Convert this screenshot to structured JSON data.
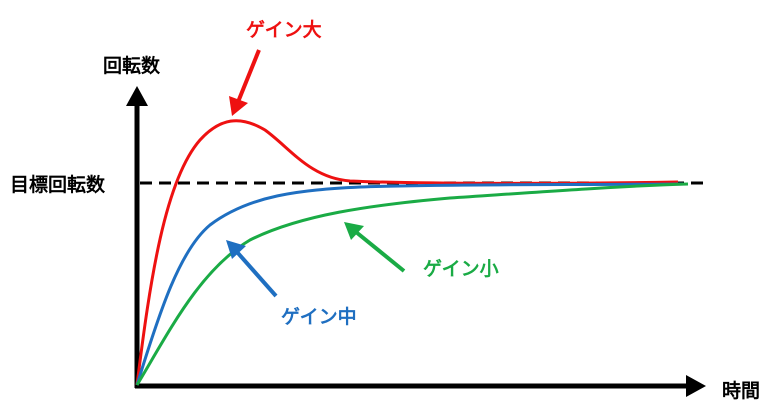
{
  "labels": {
    "y_axis": "回転数",
    "x_axis": "時間",
    "target": "目標回転数"
  },
  "curves": [
    {
      "key": "high",
      "label": "ゲイン大",
      "color": "#ee1111"
    },
    {
      "key": "mid",
      "label": "ゲイン中",
      "color": "#1f6fc1"
    },
    {
      "key": "low",
      "label": "ゲイン小",
      "color": "#1aab45"
    }
  ],
  "colors": {
    "axis": "#000000",
    "target_line": "#000000"
  }
}
